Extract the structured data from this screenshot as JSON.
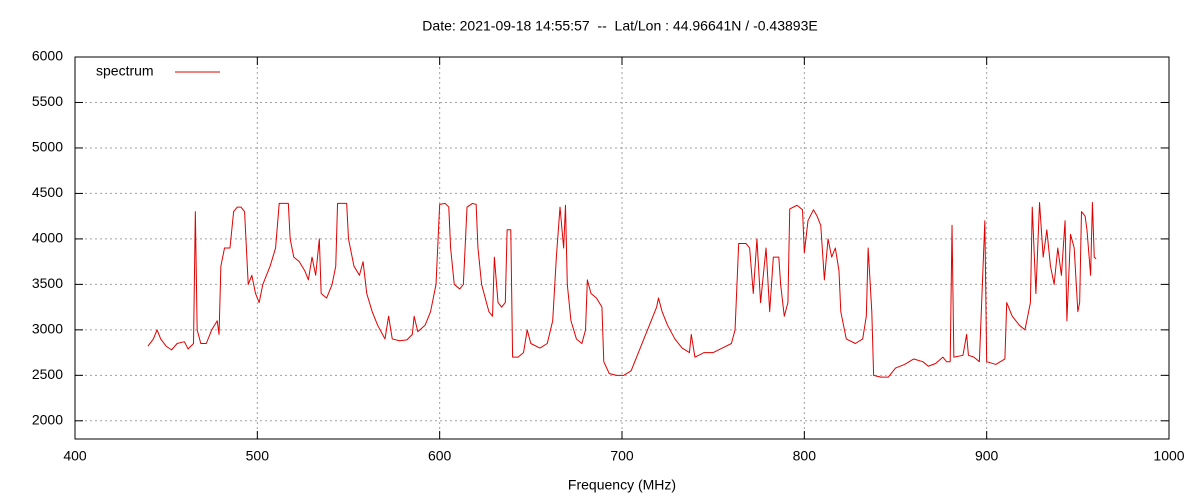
{
  "chart_data": {
    "type": "line",
    "title": "Date: 2021-09-18 14:55:57  --  Lat/Lon : 44.96641N / -0.43893E",
    "xlabel": "Frequency (MHz)",
    "xlim": [
      400,
      1000
    ],
    "xticks": [
      400,
      500,
      600,
      700,
      800,
      900,
      1000
    ],
    "ylim": [
      1800,
      6000
    ],
    "yticks": [
      2000,
      2500,
      3000,
      3500,
      4000,
      4500,
      5000,
      5500,
      6000
    ],
    "grid": true,
    "legend": "top-left",
    "series": [
      {
        "name": "spectrum",
        "color": "#e00000",
        "x": [
          440,
          443,
          445,
          447,
          450,
          453,
          456,
          460,
          462,
          465,
          466,
          467,
          469,
          472,
          475,
          478,
          479,
          480,
          482,
          485,
          487,
          489,
          491,
          493,
          495,
          497,
          499,
          501,
          503,
          505,
          507,
          510,
          512,
          516,
          517,
          518,
          520,
          523,
          526,
          528,
          530,
          532,
          534,
          535,
          538,
          541,
          543,
          544,
          548,
          549,
          550,
          553,
          556,
          558,
          560,
          563,
          566,
          570,
          572,
          574,
          578,
          582,
          585,
          586,
          588,
          592,
          595,
          598,
          600,
          603,
          605,
          606,
          608,
          611,
          613,
          615,
          618,
          620,
          621,
          623,
          627,
          629,
          630,
          632,
          634,
          636,
          637,
          639,
          640,
          643,
          646,
          648,
          650,
          655,
          659,
          662,
          664,
          666,
          668,
          669,
          670,
          672,
          675,
          678,
          680,
          681,
          683,
          686,
          689,
          690,
          693,
          697,
          701,
          705,
          708,
          712,
          716,
          719,
          720,
          722,
          725,
          729,
          733,
          737,
          738,
          740,
          745,
          750,
          755,
          760,
          762,
          764,
          768,
          770,
          772,
          774,
          776,
          779,
          781,
          783,
          786,
          787,
          789,
          791,
          792,
          796,
          799,
          800,
          802,
          805,
          807,
          809,
          811,
          813,
          815,
          817,
          819,
          820,
          823,
          828,
          832,
          834,
          835,
          837,
          838,
          842,
          846,
          850,
          855,
          860,
          865,
          868,
          872,
          876,
          878,
          880,
          881,
          882,
          887,
          889,
          890,
          893,
          896,
          899,
          900,
          905,
          910,
          911,
          914,
          918,
          921,
          924,
          925,
          927,
          929,
          931,
          933,
          935,
          937,
          939,
          941,
          943,
          944,
          946,
          948,
          950,
          951,
          952,
          954,
          955,
          957,
          958,
          959,
          960
        ],
        "values": [
          2820,
          2900,
          3000,
          2900,
          2820,
          2780,
          2850,
          2870,
          2790,
          2850,
          4300,
          3000,
          2850,
          2850,
          3000,
          3100,
          2950,
          3700,
          3900,
          3900,
          4300,
          4350,
          4350,
          4300,
          3500,
          3600,
          3400,
          3300,
          3500,
          3600,
          3700,
          3900,
          4390,
          4390,
          4390,
          4000,
          3800,
          3750,
          3650,
          3550,
          3800,
          3600,
          4000,
          3400,
          3350,
          3500,
          3700,
          4390,
          4390,
          4390,
          4000,
          3700,
          3600,
          3750,
          3400,
          3200,
          3050,
          2900,
          3150,
          2900,
          2880,
          2890,
          2950,
          3150,
          2980,
          3050,
          3200,
          3500,
          4380,
          4390,
          4350,
          3900,
          3500,
          3450,
          3500,
          4350,
          4390,
          4380,
          3900,
          3500,
          3200,
          3150,
          3800,
          3300,
          3250,
          3300,
          4100,
          4100,
          2700,
          2700,
          2750,
          3000,
          2850,
          2800,
          2850,
          3100,
          3800,
          4350,
          3900,
          4370,
          3500,
          3100,
          2900,
          2850,
          3000,
          3550,
          3400,
          3350,
          3250,
          2650,
          2520,
          2500,
          2500,
          2550,
          2700,
          2900,
          3100,
          3250,
          3350,
          3200,
          3050,
          2900,
          2800,
          2750,
          2950,
          2700,
          2750,
          2750,
          2800,
          2850,
          3000,
          3950,
          3950,
          3900,
          3400,
          4000,
          3300,
          3900,
          3200,
          3800,
          3800,
          3500,
          3150,
          3300,
          4330,
          4370,
          4320,
          3850,
          4200,
          4320,
          4250,
          4150,
          3550,
          4000,
          3800,
          3900,
          3650,
          3200,
          2900,
          2850,
          2900,
          3150,
          3900,
          3200,
          2500,
          2480,
          2480,
          2580,
          2620,
          2680,
          2650,
          2600,
          2630,
          2700,
          2650,
          2650,
          4150,
          2700,
          2720,
          2950,
          2720,
          2700,
          2650,
          4200,
          2650,
          2620,
          2680,
          3300,
          3150,
          3050,
          3000,
          3300,
          4350,
          3400,
          4400,
          3800,
          4100,
          3700,
          3500,
          3900,
          3600,
          4200,
          3100,
          4050,
          3900,
          3200,
          3300,
          4300,
          4250,
          4100,
          3600,
          4400,
          3800,
          3780
        ]
      }
    ]
  }
}
